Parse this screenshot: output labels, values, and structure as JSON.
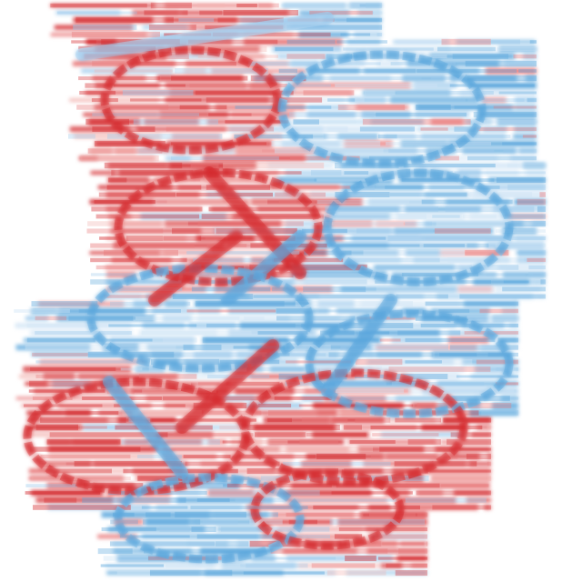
{
  "image": {
    "description_kind": "abstract-stripe-artwork",
    "palette": {
      "background": "#ffffff",
      "red": "#d42a2e",
      "red_light": "#e8797a",
      "red_pale": "#f3b6b3",
      "blue": "#5aa6dc",
      "blue_light": "#9dcaec",
      "blue_pale": "#cfe4f5"
    }
  }
}
